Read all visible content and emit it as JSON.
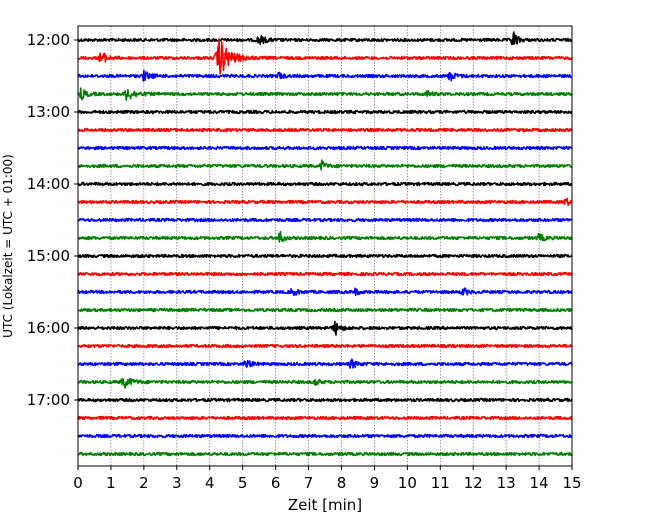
{
  "chart_data": {
    "type": "line",
    "title": "",
    "xlabel": "Zeit  [min]",
    "ylabel": "UTC (Lokalzeit = UTC + 01:00)",
    "xlim": [
      0,
      15
    ],
    "xticks": [
      "0",
      "1",
      "2",
      "3",
      "4",
      "5",
      "6",
      "7",
      "8",
      "9",
      "10",
      "11",
      "12",
      "13",
      "14",
      "15"
    ],
    "yticks": [
      {
        "label": "12:00",
        "trace": 0
      },
      {
        "label": "13:00",
        "trace": 4
      },
      {
        "label": "14:00",
        "trace": 8
      },
      {
        "label": "15:00",
        "trace": 12
      },
      {
        "label": "16:00",
        "trace": 16
      },
      {
        "label": "17:00",
        "trace": 20
      }
    ],
    "grid": "vertical dotted",
    "trace_count": 24,
    "trace_interval_min": 15,
    "colors": [
      "#000000",
      "#ff0000",
      "#0000ff",
      "#008000"
    ],
    "noise_amplitude": 0.08,
    "events": [
      {
        "trace": 0,
        "minute": 5.5,
        "amp": 0.25,
        "dur": 0.5
      },
      {
        "trace": 0,
        "minute": 13.2,
        "amp": 0.6,
        "dur": 0.3
      },
      {
        "trace": 1,
        "minute": 0.7,
        "amp": 0.4,
        "dur": 0.4
      },
      {
        "trace": 1,
        "minute": 4.3,
        "amp": 1.05,
        "dur": 0.8
      },
      {
        "trace": 2,
        "minute": 2.0,
        "amp": 0.25,
        "dur": 0.5
      },
      {
        "trace": 2,
        "minute": 6.1,
        "amp": 0.2,
        "dur": 0.3
      },
      {
        "trace": 2,
        "minute": 11.3,
        "amp": 0.25,
        "dur": 0.4
      },
      {
        "trace": 3,
        "minute": 0.1,
        "amp": 0.3,
        "dur": 0.4
      },
      {
        "trace": 3,
        "minute": 1.5,
        "amp": 0.35,
        "dur": 0.6
      },
      {
        "trace": 3,
        "minute": 10.6,
        "amp": 0.18,
        "dur": 0.3
      },
      {
        "trace": 7,
        "minute": 7.4,
        "amp": 0.3,
        "dur": 0.3
      },
      {
        "trace": 9,
        "minute": 14.8,
        "amp": 0.25,
        "dur": 0.3
      },
      {
        "trace": 11,
        "minute": 6.1,
        "amp": 0.45,
        "dur": 0.3
      },
      {
        "trace": 11,
        "minute": 14.0,
        "amp": 0.2,
        "dur": 0.4
      },
      {
        "trace": 14,
        "minute": 6.5,
        "amp": 0.2,
        "dur": 0.4
      },
      {
        "trace": 14,
        "minute": 8.4,
        "amp": 0.2,
        "dur": 0.3
      },
      {
        "trace": 14,
        "minute": 11.7,
        "amp": 0.2,
        "dur": 0.4
      },
      {
        "trace": 16,
        "minute": 7.8,
        "amp": 0.4,
        "dur": 0.4
      },
      {
        "trace": 18,
        "minute": 5.1,
        "amp": 0.25,
        "dur": 0.4
      },
      {
        "trace": 18,
        "minute": 8.3,
        "amp": 0.25,
        "dur": 0.4
      },
      {
        "trace": 19,
        "minute": 1.4,
        "amp": 0.3,
        "dur": 0.6
      },
      {
        "trace": 19,
        "minute": 7.2,
        "amp": 0.2,
        "dur": 0.3
      }
    ]
  }
}
